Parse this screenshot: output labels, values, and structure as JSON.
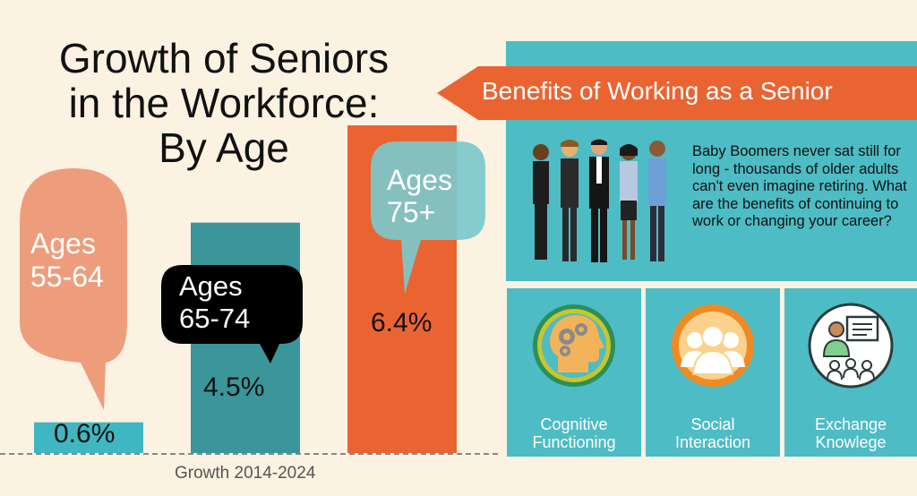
{
  "title": {
    "line1": "Growth of Seniors",
    "line2": "in the Workforce:",
    "line3": "By Age"
  },
  "chart_data": {
    "type": "bar",
    "categories": [
      "Ages 55-64",
      "Ages 65-74",
      "Ages 75+"
    ],
    "values": [
      0.6,
      4.5,
      6.4
    ],
    "value_labels": [
      "0.6%",
      "4.5%",
      "6.4%"
    ],
    "bubble_labels": [
      [
        "Ages",
        "55-64"
      ],
      [
        "Ages",
        "65-74"
      ],
      [
        "Ages",
        "75+"
      ]
    ],
    "xlabel": "Growth 2014-2024",
    "colors": [
      "#3fb7c2",
      "#3a969a",
      "#ea6432"
    ],
    "bubble_colors": [
      "#ee9d7c",
      "#000000",
      "#7cc8cb"
    ]
  },
  "benefits": {
    "title": "Benefits of Working as a Senior",
    "text": "Baby Boomers never sat still for long - thousands of older adults can't even imagine retiring. What are the benefits of continuing to work or changing your career?",
    "image_icon": "business-people-group-icon",
    "cards": [
      {
        "icon": "head-gears-icon",
        "line1": "Cognitive",
        "line2": "Functioning"
      },
      {
        "icon": "people-group-icon",
        "line1": "Social",
        "line2": "Interaction"
      },
      {
        "icon": "presenter-board-icon",
        "line1": "Exchange",
        "line2": "Knowlege"
      }
    ]
  },
  "colors": {
    "background": "#fbf2e2",
    "teal": "#4dbcc4",
    "orange": "#ea6432"
  }
}
